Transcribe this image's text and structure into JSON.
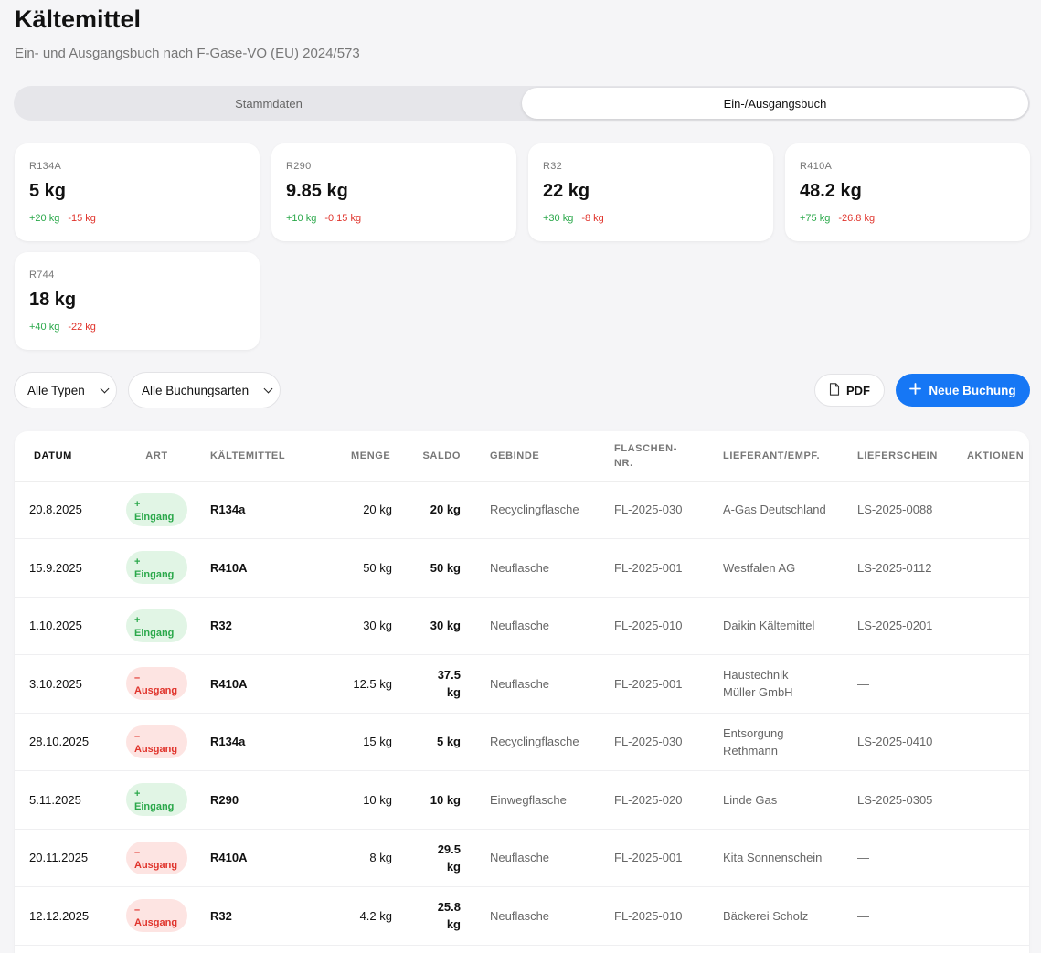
{
  "header": {
    "title": "Kältemittel",
    "subtitle": "Ein- und Ausgangsbuch nach F-Gase-VO (EU) 2024/573"
  },
  "tabs": [
    {
      "label": "Stammdaten",
      "active": false
    },
    {
      "label": "Ein-/Ausgangsbuch",
      "active": true
    }
  ],
  "stock_cards": [
    {
      "code": "R134A",
      "value": "5 kg",
      "in": "+20 kg",
      "out": "-15 kg"
    },
    {
      "code": "R290",
      "value": "9.85 kg",
      "in": "+10 kg",
      "out": "-0.15 kg"
    },
    {
      "code": "R32",
      "value": "22 kg",
      "in": "+30 kg",
      "out": "-8 kg"
    },
    {
      "code": "R410A",
      "value": "48.2 kg",
      "in": "+75 kg",
      "out": "-26.8 kg"
    },
    {
      "code": "R744",
      "value": "18 kg",
      "in": "+40 kg",
      "out": "-22 kg"
    }
  ],
  "filters": {
    "type_select": "Alle Typen",
    "booking_select": "Alle Buchungsarten"
  },
  "actions": {
    "pdf_label": "PDF",
    "new_label": "Neue Buchung"
  },
  "table": {
    "columns": [
      "Datum",
      "Art",
      "Kältemittel",
      "Menge",
      "Saldo",
      "Gebinde",
      "Flaschen-Nr.",
      "Lieferant/Empf.",
      "Lieferschein",
      "Aktionen"
    ],
    "rows": [
      {
        "date": "20.8.2025",
        "kind_sign": "+",
        "kind": "Eingang",
        "type": "in",
        "refrigerant": "R134a",
        "amount": "20 kg",
        "saldo": "20 kg",
        "container": "Recyclingflasche",
        "bottle": "FL-2025-030",
        "partner": "A-Gas Deutschland",
        "delivery": "LS-2025-0088"
      },
      {
        "date": "15.9.2025",
        "kind_sign": "+",
        "kind": "Eingang",
        "type": "in",
        "refrigerant": "R410A",
        "amount": "50 kg",
        "saldo": "50 kg",
        "container": "Neuflasche",
        "bottle": "FL-2025-001",
        "partner": "Westfalen AG",
        "delivery": "LS-2025-0112"
      },
      {
        "date": "1.10.2025",
        "kind_sign": "+",
        "kind": "Eingang",
        "type": "in",
        "refrigerant": "R32",
        "amount": "30 kg",
        "saldo": "30 kg",
        "container": "Neuflasche",
        "bottle": "FL-2025-010",
        "partner": "Daikin Kältemittel",
        "delivery": "LS-2025-0201"
      },
      {
        "date": "3.10.2025",
        "kind_sign": "–",
        "kind": "Ausgang",
        "type": "out",
        "refrigerant": "R410A",
        "amount": "12.5 kg",
        "saldo": "37.5 kg",
        "container": "Neuflasche",
        "bottle": "FL-2025-001",
        "partner": "Haustechnik Müller GmbH",
        "delivery": "—"
      },
      {
        "date": "28.10.2025",
        "kind_sign": "–",
        "kind": "Ausgang",
        "type": "out",
        "refrigerant": "R134a",
        "amount": "15 kg",
        "saldo": "5 kg",
        "container": "Recyclingflasche",
        "bottle": "FL-2025-030",
        "partner": "Entsorgung Rethmann",
        "delivery": "LS-2025-0410"
      },
      {
        "date": "5.11.2025",
        "kind_sign": "+",
        "kind": "Eingang",
        "type": "in",
        "refrigerant": "R290",
        "amount": "10 kg",
        "saldo": "10 kg",
        "container": "Einwegflasche",
        "bottle": "FL-2025-020",
        "partner": "Linde Gas",
        "delivery": "LS-2025-0305"
      },
      {
        "date": "20.11.2025",
        "kind_sign": "–",
        "kind": "Ausgang",
        "type": "out",
        "refrigerant": "R410A",
        "amount": "8 kg",
        "saldo": "29.5 kg",
        "container": "Neuflasche",
        "bottle": "FL-2025-001",
        "partner": "Kita Sonnenschein",
        "delivery": "—"
      },
      {
        "date": "12.12.2025",
        "kind_sign": "–",
        "kind": "Ausgang",
        "type": "out",
        "refrigerant": "R32",
        "amount": "4.2 kg",
        "saldo": "25.8 kg",
        "container": "Neuflasche",
        "bottle": "FL-2025-010",
        "partner": "Bäckerei Scholz",
        "delivery": "—"
      }
    ]
  },
  "colors": {
    "accent": "#1677f5",
    "in": "#2aa84a",
    "out": "#e0342c",
    "background": "#f5f5f7"
  }
}
